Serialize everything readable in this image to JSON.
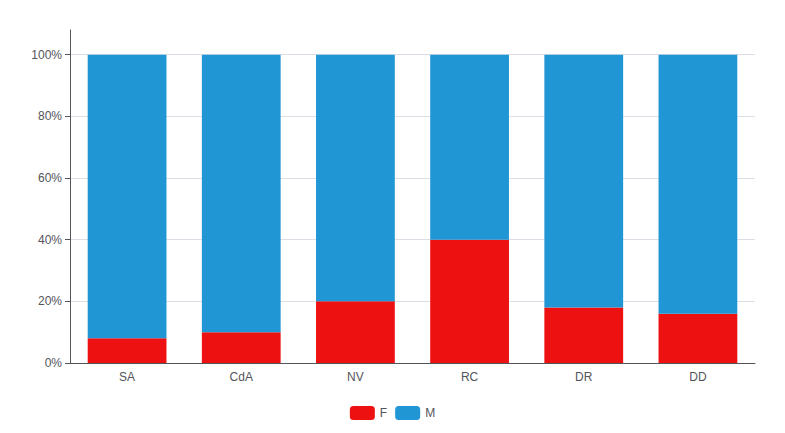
{
  "chart_data": {
    "type": "bar",
    "categories": [
      "SA",
      "CdA",
      "NV",
      "RC",
      "DR",
      "DD"
    ],
    "series": [
      {
        "name": "F",
        "color": "#ee1111",
        "values": [
          0.08,
          0.1,
          0.2,
          0.4,
          0.18,
          0.16
        ]
      },
      {
        "name": "M",
        "color": "#2196d4",
        "values": [
          0.92,
          0.9,
          0.8,
          0.6,
          0.82,
          0.84
        ]
      }
    ],
    "stacked": true,
    "ylim": [
      0,
      1.08
    ],
    "yticks": [
      {
        "value": 0,
        "label": "0%"
      },
      {
        "value": 0.2,
        "label": "20%"
      },
      {
        "value": 0.4,
        "label": "40%"
      },
      {
        "value": 0.6,
        "label": "60%"
      },
      {
        "value": 0.8,
        "label": "80%"
      },
      {
        "value": 1.0,
        "label": "100%"
      }
    ],
    "grid": true,
    "legend": "bottom"
  }
}
